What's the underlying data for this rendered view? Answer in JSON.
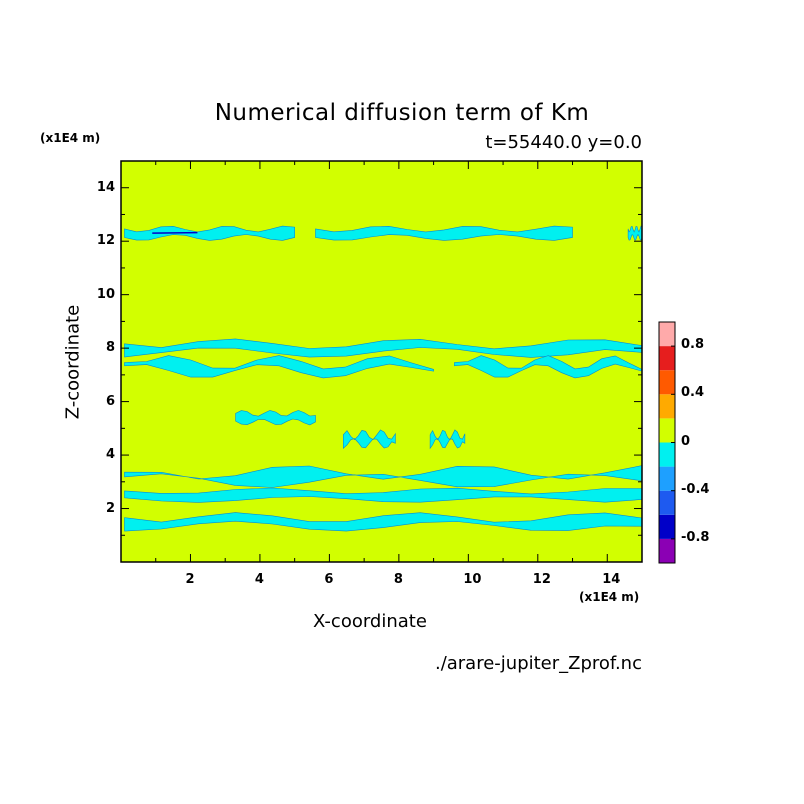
{
  "chart_data": {
    "type": "heatmap",
    "title": "Numerical diffusion term of Km",
    "subtitle": "t=55440.0 y=0.0",
    "xlabel": "X-coordinate",
    "ylabel": "Z-coordinate",
    "x_unit": "(x1E4 m)",
    "y_unit": "(x1E4 m)",
    "xlim": [
      0,
      15
    ],
    "ylim": [
      0,
      15
    ],
    "xticks": [
      "2",
      "4",
      "6",
      "8",
      "10",
      "12",
      "14"
    ],
    "xtick_values": [
      2,
      4,
      6,
      8,
      10,
      12,
      14
    ],
    "yticks": [
      "2",
      "4",
      "6",
      "8",
      "10",
      "12",
      "14"
    ],
    "ytick_values": [
      2,
      4,
      6,
      8,
      10,
      12,
      14
    ],
    "background_level": "0 to 0.2",
    "colorbar": {
      "levels": [
        -1.0,
        -0.8,
        -0.6,
        -0.4,
        -0.2,
        0.0,
        0.2,
        0.4,
        0.6,
        0.8,
        1.0
      ],
      "colors": [
        "#8b00b4",
        "#0000c8",
        "#1e5af0",
        "#1ea0ff",
        "#00f0f0",
        "#d2ff00",
        "#ffaa00",
        "#ff5a00",
        "#e61e1e",
        "#ffaaaa"
      ],
      "tick_labels": [
        "0.8",
        "0.4",
        "0",
        "-0.4",
        "-0.8"
      ],
      "tick_values": [
        0.8,
        0.4,
        0.0,
        -0.4,
        -0.8
      ]
    },
    "negative_bands_z": [
      {
        "z": 12.3,
        "x_ranges": [
          [
            0.1,
            5.0
          ],
          [
            5.6,
            13.0
          ],
          [
            14.6,
            15.0
          ]
        ]
      },
      {
        "z": 8.0,
        "x_ranges": [
          [
            0.1,
            15.0
          ]
        ]
      },
      {
        "z": 7.3,
        "x_ranges": [
          [
            0.1,
            9.0
          ],
          [
            9.6,
            15.0
          ]
        ]
      },
      {
        "z": 5.4,
        "x_ranges": [
          [
            3.3,
            5.6
          ]
        ]
      },
      {
        "z": 4.6,
        "x_ranges": [
          [
            6.4,
            7.9
          ],
          [
            8.9,
            9.9
          ]
        ]
      },
      {
        "z": 3.2,
        "x_ranges": [
          [
            0.1,
            15.0
          ]
        ]
      },
      {
        "z": 2.5,
        "x_ranges": [
          [
            0.1,
            15.0
          ]
        ]
      },
      {
        "z": 1.5,
        "x_ranges": [
          [
            0.1,
            15.0
          ]
        ]
      }
    ]
  },
  "source_label": "./arare-jupiter_Zprof.nc"
}
